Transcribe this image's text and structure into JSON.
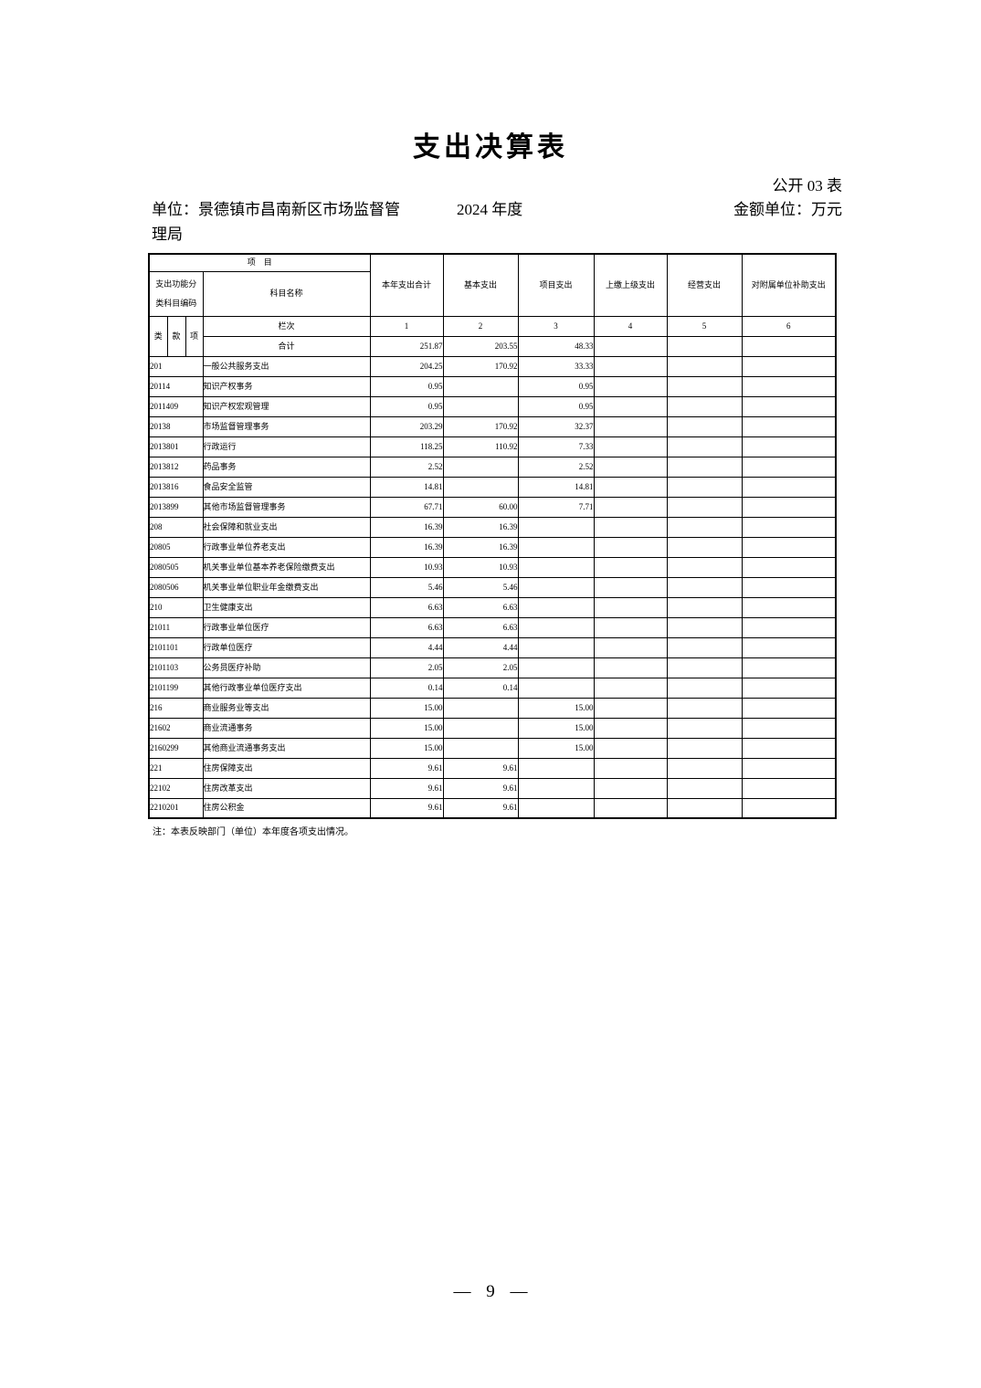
{
  "page": {
    "title": "支出决算表",
    "table_code": "公开 03 表",
    "unit": "单位：景德镇市昌南新区市场监督管理局",
    "year": "2024 年度",
    "amount_unit": "金额单位：万元",
    "note": "注：本表反映部门（单位）本年度各项支出情况。",
    "page_number": "— 9 —"
  },
  "table": {
    "header": {
      "project": "项　目",
      "code_line1": "支出功能分",
      "code_line2": "类科目编码",
      "subject_name": "科目名称",
      "class": "类",
      "section": "款",
      "item": "项",
      "columns": [
        "本年支出合计",
        "基本支出",
        "项目支出",
        "上缴上级支出",
        "经营支出",
        "对附属单位补助支出"
      ],
      "row_label": "栏次",
      "column_numbers": [
        "1",
        "2",
        "3",
        "4",
        "5",
        "6"
      ]
    },
    "total": {
      "label": "合计",
      "values": [
        "251.87",
        "203.55",
        "48.33",
        "",
        "",
        ""
      ]
    },
    "rows": [
      {
        "code": "201",
        "name": "一般公共服务支出",
        "values": [
          "204.25",
          "170.92",
          "33.33",
          "",
          "",
          ""
        ]
      },
      {
        "code": "20114",
        "name": "知识产权事务",
        "values": [
          "0.95",
          "",
          "0.95",
          "",
          "",
          ""
        ]
      },
      {
        "code": "2011409",
        "name": "知识产权宏观管理",
        "values": [
          "0.95",
          "",
          "0.95",
          "",
          "",
          ""
        ]
      },
      {
        "code": "20138",
        "name": "市场监督管理事务",
        "values": [
          "203.29",
          "170.92",
          "32.37",
          "",
          "",
          ""
        ]
      },
      {
        "code": "2013801",
        "name": "行政运行",
        "values": [
          "118.25",
          "110.92",
          "7.33",
          "",
          "",
          ""
        ]
      },
      {
        "code": "2013812",
        "name": "药品事务",
        "values": [
          "2.52",
          "",
          "2.52",
          "",
          "",
          ""
        ]
      },
      {
        "code": "2013816",
        "name": "食品安全监管",
        "values": [
          "14.81",
          "",
          "14.81",
          "",
          "",
          ""
        ]
      },
      {
        "code": "2013899",
        "name": "其他市场监督管理事务",
        "values": [
          "67.71",
          "60.00",
          "7.71",
          "",
          "",
          ""
        ]
      },
      {
        "code": "208",
        "name": "社会保障和就业支出",
        "values": [
          "16.39",
          "16.39",
          "",
          "",
          "",
          ""
        ]
      },
      {
        "code": "20805",
        "name": "行政事业单位养老支出",
        "values": [
          "16.39",
          "16.39",
          "",
          "",
          "",
          ""
        ]
      },
      {
        "code": "2080505",
        "name": "机关事业单位基本养老保险缴费支出",
        "values": [
          "10.93",
          "10.93",
          "",
          "",
          "",
          ""
        ]
      },
      {
        "code": "2080506",
        "name": "机关事业单位职业年金缴费支出",
        "values": [
          "5.46",
          "5.46",
          "",
          "",
          "",
          ""
        ]
      },
      {
        "code": "210",
        "name": "卫生健康支出",
        "values": [
          "6.63",
          "6.63",
          "",
          "",
          "",
          ""
        ]
      },
      {
        "code": "21011",
        "name": "行政事业单位医疗",
        "values": [
          "6.63",
          "6.63",
          "",
          "",
          "",
          ""
        ]
      },
      {
        "code": "2101101",
        "name": "行政单位医疗",
        "values": [
          "4.44",
          "4.44",
          "",
          "",
          "",
          ""
        ]
      },
      {
        "code": "2101103",
        "name": "公务员医疗补助",
        "values": [
          "2.05",
          "2.05",
          "",
          "",
          "",
          ""
        ]
      },
      {
        "code": "2101199",
        "name": "其他行政事业单位医疗支出",
        "values": [
          "0.14",
          "0.14",
          "",
          "",
          "",
          ""
        ]
      },
      {
        "code": "216",
        "name": "商业服务业等支出",
        "values": [
          "15.00",
          "",
          "15.00",
          "",
          "",
          ""
        ]
      },
      {
        "code": "21602",
        "name": "商业流通事务",
        "values": [
          "15.00",
          "",
          "15.00",
          "",
          "",
          ""
        ]
      },
      {
        "code": "2160299",
        "name": "其他商业流通事务支出",
        "values": [
          "15.00",
          "",
          "15.00",
          "",
          "",
          ""
        ]
      },
      {
        "code": "221",
        "name": "住房保障支出",
        "values": [
          "9.61",
          "9.61",
          "",
          "",
          "",
          ""
        ]
      },
      {
        "code": "22102",
        "name": "住房改革支出",
        "values": [
          "9.61",
          "9.61",
          "",
          "",
          "",
          ""
        ]
      },
      {
        "code": "2210201",
        "name": "住房公积金",
        "values": [
          "9.61",
          "9.61",
          "",
          "",
          "",
          ""
        ]
      }
    ]
  }
}
